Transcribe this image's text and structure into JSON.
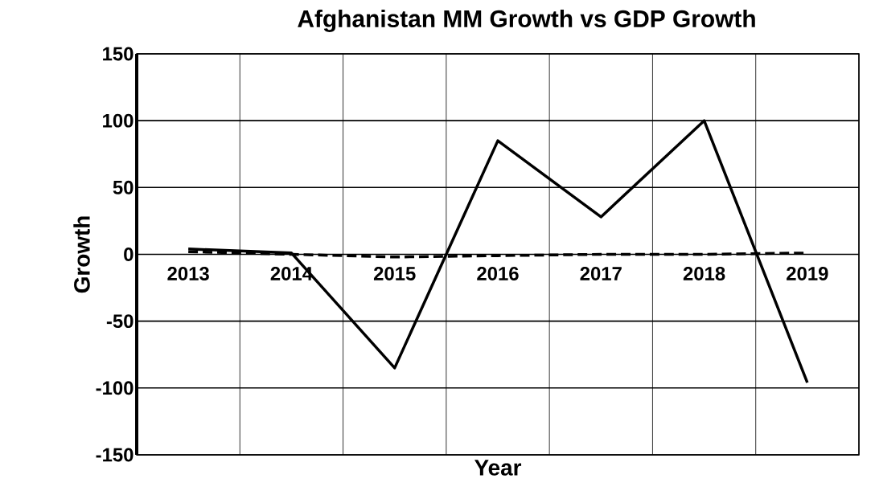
{
  "chart_data": {
    "type": "line",
    "title": "Afghanistan MM Growth vs GDP Growth",
    "xlabel": "Year",
    "ylabel": "Growth",
    "categories": [
      "2013",
      "2014",
      "2015",
      "2016",
      "2017",
      "2018",
      "2019"
    ],
    "series": [
      {
        "color": "#000000",
        "line_style": "solid",
        "values": [
          4,
          1,
          -85,
          85,
          28,
          100,
          -96
        ]
      },
      {
        "color": "#000000",
        "line_style": "dashed",
        "values": [
          2,
          0,
          -2,
          -1,
          0,
          0,
          1
        ]
      }
    ],
    "ylim": [
      -150,
      150
    ],
    "yticks": [
      -150,
      -100,
      -50,
      0,
      50,
      100,
      150
    ],
    "grid": true,
    "marker": "none"
  }
}
